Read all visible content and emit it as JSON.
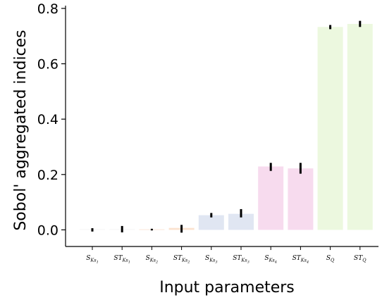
{
  "chart_data": {
    "type": "bar",
    "xlabel": "Input parameters",
    "ylabel": "Sobol' aggregated indices",
    "ylim": [
      -0.06,
      0.81
    ],
    "yticks": [
      {
        "value": 0.0,
        "label": "0.0"
      },
      {
        "value": 0.2,
        "label": "0.2"
      },
      {
        "value": 0.4,
        "label": "0.4"
      },
      {
        "value": 0.6,
        "label": "0.6"
      },
      {
        "value": 0.8,
        "label": "0.8"
      }
    ],
    "grid": false,
    "legend": "none",
    "categories": [
      {
        "base": "S",
        "sub": "Ks",
        "subsub": "1"
      },
      {
        "base": "ST",
        "sub": "Ks",
        "subsub": "1"
      },
      {
        "base": "S",
        "sub": "Ks",
        "subsub": "2"
      },
      {
        "base": "ST",
        "sub": "Ks",
        "subsub": "2"
      },
      {
        "base": "S",
        "sub": "Ks",
        "subsub": "3"
      },
      {
        "base": "ST",
        "sub": "Ks",
        "subsub": "3"
      },
      {
        "base": "S",
        "sub": "Ks",
        "subsub": "4"
      },
      {
        "base": "ST",
        "sub": "Ks",
        "subsub": "4"
      },
      {
        "base": "S",
        "sub": "Q",
        "subsub": ""
      },
      {
        "base": "ST",
        "sub": "Q",
        "subsub": ""
      }
    ],
    "values": [
      0.002,
      0.002,
      0.002,
      0.007,
      0.053,
      0.058,
      0.229,
      0.222,
      0.733,
      0.744
    ],
    "error_low": [
      -0.006,
      -0.009,
      -0.002,
      -0.01,
      0.045,
      0.045,
      0.213,
      0.203,
      0.725,
      0.733
    ],
    "error_high": [
      0.006,
      0.014,
      0.004,
      0.018,
      0.061,
      0.075,
      0.242,
      0.242,
      0.74,
      0.755
    ],
    "bar_colors": [
      "#f3f3f3",
      "#f3f3f3",
      "#fbe2cf",
      "#fbe2cf",
      "#e0e6f2",
      "#e0e6f2",
      "#f7dbee",
      "#f7dbee",
      "#ecf8df",
      "#ecf8df"
    ]
  }
}
